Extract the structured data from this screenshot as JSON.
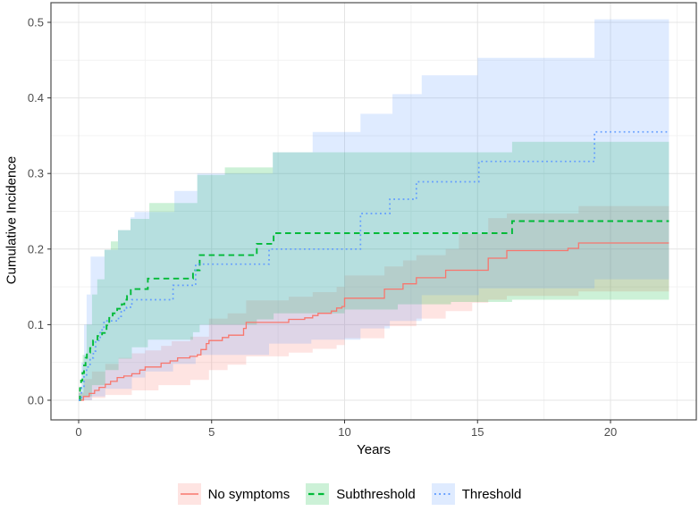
{
  "chart_data": {
    "type": "line",
    "subtype": "step-cumulative-incidence-with-ci-ribbons",
    "title": "",
    "xlabel": "Years",
    "ylabel": "Cumulative Incidence",
    "x_ticks": [
      0,
      5,
      10,
      15,
      20
    ],
    "x_tick_labels": [
      "0",
      "5",
      "10",
      "15",
      "20"
    ],
    "x_minor": [
      2.5,
      7.5,
      12.5,
      17.5,
      22.5
    ],
    "y_ticks": [
      0.0,
      0.1,
      0.2,
      0.3,
      0.4,
      0.5
    ],
    "y_tick_labels": [
      "0.0",
      "0.1",
      "0.2",
      "0.3",
      "0.4",
      "0.5"
    ],
    "y_minor": [
      0.05,
      0.15,
      0.25,
      0.35,
      0.45
    ],
    "xlim": [
      -1.04,
      23.3
    ],
    "ylim": [
      -0.026,
      0.527
    ],
    "grid": "major+minor",
    "legend_position": "bottom",
    "colors": {
      "no_symptoms": "#F8766D",
      "subthreshold": "#00BA38",
      "threshold": "#619CFF",
      "grid_major": "#E4E4E4",
      "grid_minor": "#F1F1F1",
      "panel_border": "#4D4D4D",
      "tick_text": "#4D4D4D"
    },
    "series": [
      {
        "name": "No symptoms",
        "color": "#F8766D",
        "linestyle": "solid",
        "linewidth": 1.3,
        "steps": [
          [
            0,
            0
          ],
          [
            0.18,
            0.005
          ],
          [
            0.4,
            0.009
          ],
          [
            0.6,
            0.013
          ],
          [
            0.77,
            0.017
          ],
          [
            1.0,
            0.021
          ],
          [
            1.2,
            0.025
          ],
          [
            1.45,
            0.03
          ],
          [
            1.7,
            0.032
          ],
          [
            2.0,
            0.035
          ],
          [
            2.3,
            0.04
          ],
          [
            2.5,
            0.044
          ],
          [
            3.1,
            0.049
          ],
          [
            3.44,
            0.052
          ],
          [
            3.72,
            0.056
          ],
          [
            4.18,
            0.058
          ],
          [
            4.46,
            0.06
          ],
          [
            4.6,
            0.067
          ],
          [
            4.8,
            0.075
          ],
          [
            4.9,
            0.079
          ],
          [
            5.4,
            0.083
          ],
          [
            5.64,
            0.086
          ],
          [
            6.2,
            0.095
          ],
          [
            6.3,
            0.103
          ],
          [
            7.9,
            0.107
          ],
          [
            8.5,
            0.109
          ],
          [
            8.8,
            0.112
          ],
          [
            9.0,
            0.115
          ],
          [
            9.5,
            0.118
          ],
          [
            9.7,
            0.122
          ],
          [
            9.9,
            0.124
          ],
          [
            10.0,
            0.135
          ],
          [
            11.5,
            0.147
          ],
          [
            12.2,
            0.154
          ],
          [
            12.7,
            0.162
          ],
          [
            13.8,
            0.172
          ],
          [
            15.4,
            0.188
          ],
          [
            16.1,
            0.198
          ],
          [
            18.4,
            0.201
          ],
          [
            18.8,
            0.208
          ],
          [
            22.2,
            0.208
          ]
        ],
        "ci_upper": [
          [
            0,
            0.01
          ],
          [
            0.2,
            0.028
          ],
          [
            0.5,
            0.038
          ],
          [
            1,
            0.048
          ],
          [
            1.5,
            0.056
          ],
          [
            2,
            0.062
          ],
          [
            2.5,
            0.066
          ],
          [
            3.1,
            0.072
          ],
          [
            3.5,
            0.078
          ],
          [
            4.2,
            0.084
          ],
          [
            4.9,
            0.108
          ],
          [
            5.6,
            0.115
          ],
          [
            6.3,
            0.132
          ],
          [
            7.9,
            0.137
          ],
          [
            8.8,
            0.143
          ],
          [
            9.7,
            0.15
          ],
          [
            10,
            0.165
          ],
          [
            11.5,
            0.177
          ],
          [
            12.2,
            0.185
          ],
          [
            12.7,
            0.192
          ],
          [
            13.8,
            0.2
          ],
          [
            14.3,
            0.22
          ],
          [
            15.4,
            0.241
          ],
          [
            16.1,
            0.247
          ],
          [
            18.8,
            0.257
          ],
          [
            22.2,
            0.257
          ]
        ],
        "ci_lower": [
          [
            0,
            0
          ],
          [
            0.5,
            0.003
          ],
          [
            1,
            0.007
          ],
          [
            2,
            0.013
          ],
          [
            3,
            0.02
          ],
          [
            4.2,
            0.027
          ],
          [
            4.9,
            0.04
          ],
          [
            5.6,
            0.047
          ],
          [
            6.3,
            0.058
          ],
          [
            7.9,
            0.063
          ],
          [
            8.8,
            0.068
          ],
          [
            9.7,
            0.073
          ],
          [
            10,
            0.082
          ],
          [
            11.5,
            0.098
          ],
          [
            12.7,
            0.108
          ],
          [
            13.8,
            0.118
          ],
          [
            14.8,
            0.129
          ],
          [
            15.4,
            0.133
          ],
          [
            16.1,
            0.138
          ],
          [
            18.8,
            0.144
          ],
          [
            22.2,
            0.144
          ]
        ]
      },
      {
        "name": "Subthreshold",
        "color": "#00BA38",
        "linestyle": "dashed",
        "linewidth": 1.9,
        "steps": [
          [
            0,
            0
          ],
          [
            0.05,
            0.016
          ],
          [
            0.09,
            0.026
          ],
          [
            0.14,
            0.036
          ],
          [
            0.2,
            0.046
          ],
          [
            0.26,
            0.056
          ],
          [
            0.31,
            0.063
          ],
          [
            0.43,
            0.069
          ],
          [
            0.54,
            0.079
          ],
          [
            0.71,
            0.085
          ],
          [
            0.88,
            0.089
          ],
          [
            1.05,
            0.099
          ],
          [
            1.15,
            0.109
          ],
          [
            1.28,
            0.115
          ],
          [
            1.45,
            0.121
          ],
          [
            1.62,
            0.127
          ],
          [
            1.72,
            0.133
          ],
          [
            1.82,
            0.138
          ],
          [
            1.96,
            0.147
          ],
          [
            2.6,
            0.161
          ],
          [
            4.3,
            0.172
          ],
          [
            4.55,
            0.192
          ],
          [
            6.7,
            0.207
          ],
          [
            7.33,
            0.221
          ],
          [
            16.3,
            0.237
          ],
          [
            22.2,
            0.237
          ]
        ],
        "ci_upper": [
          [
            0,
            0.01
          ],
          [
            0.15,
            0.06
          ],
          [
            0.3,
            0.1
          ],
          [
            0.5,
            0.14
          ],
          [
            0.7,
            0.16
          ],
          [
            0.97,
            0.199
          ],
          [
            1.21,
            0.21
          ],
          [
            1.48,
            0.225
          ],
          [
            1.95,
            0.24
          ],
          [
            2.66,
            0.261
          ],
          [
            4.46,
            0.298
          ],
          [
            5.5,
            0.308
          ],
          [
            7.3,
            0.328
          ],
          [
            16.3,
            0.342
          ],
          [
            22.2,
            0.342
          ]
        ],
        "ci_lower": [
          [
            0,
            0
          ],
          [
            0.2,
            0.005
          ],
          [
            0.5,
            0.02
          ],
          [
            1,
            0.04
          ],
          [
            1.5,
            0.055
          ],
          [
            2,
            0.07
          ],
          [
            2.6,
            0.08
          ],
          [
            4.3,
            0.09
          ],
          [
            4.55,
            0.1
          ],
          [
            6.7,
            0.107
          ],
          [
            7.33,
            0.115
          ],
          [
            10,
            0.12
          ],
          [
            12,
            0.127
          ],
          [
            14,
            0.13
          ],
          [
            16.3,
            0.133
          ],
          [
            22.2,
            0.133
          ]
        ]
      },
      {
        "name": "Threshold",
        "color": "#619CFF",
        "linestyle": "dotted",
        "linewidth": 1.7,
        "steps": [
          [
            0,
            0
          ],
          [
            0.1,
            0.016
          ],
          [
            0.2,
            0.032
          ],
          [
            0.3,
            0.044
          ],
          [
            0.43,
            0.056
          ],
          [
            0.55,
            0.065
          ],
          [
            0.64,
            0.079
          ],
          [
            0.81,
            0.093
          ],
          [
            0.95,
            0.105
          ],
          [
            1.5,
            0.111
          ],
          [
            1.6,
            0.117
          ],
          [
            1.72,
            0.121
          ],
          [
            1.8,
            0.123
          ],
          [
            2.0,
            0.133
          ],
          [
            3.55,
            0.152
          ],
          [
            4.4,
            0.18
          ],
          [
            7.16,
            0.2
          ],
          [
            10.6,
            0.247
          ],
          [
            11.7,
            0.266
          ],
          [
            12.7,
            0.289
          ],
          [
            15.05,
            0.316
          ],
          [
            19.4,
            0.355
          ],
          [
            22.2,
            0.355
          ]
        ],
        "ci_upper": [
          [
            0,
            0.01
          ],
          [
            0.1,
            0.05
          ],
          [
            0.2,
            0.1
          ],
          [
            0.3,
            0.14
          ],
          [
            0.45,
            0.19
          ],
          [
            0.97,
            0.199
          ],
          [
            1.48,
            0.225
          ],
          [
            1.95,
            0.242
          ],
          [
            2.1,
            0.249
          ],
          [
            3.6,
            0.277
          ],
          [
            4.46,
            0.3
          ],
          [
            7.3,
            0.328
          ],
          [
            8.8,
            0.355
          ],
          [
            10.6,
            0.379
          ],
          [
            11.8,
            0.405
          ],
          [
            12.9,
            0.43
          ],
          [
            15.0,
            0.453
          ],
          [
            19.4,
            0.504
          ],
          [
            22.2,
            0.504
          ]
        ],
        "ci_lower": [
          [
            0,
            0
          ],
          [
            0.5,
            0.005
          ],
          [
            1,
            0.015
          ],
          [
            2,
            0.03
          ],
          [
            2.5,
            0.038
          ],
          [
            3.55,
            0.048
          ],
          [
            4.4,
            0.06
          ],
          [
            7.16,
            0.075
          ],
          [
            8.75,
            0.08
          ],
          [
            10.6,
            0.095
          ],
          [
            11.7,
            0.105
          ],
          [
            12.9,
            0.139
          ],
          [
            15.05,
            0.148
          ],
          [
            19.4,
            0.16
          ],
          [
            22.2,
            0.16
          ]
        ]
      }
    ],
    "ribbon_opacity": 0.2,
    "legend": {
      "items": [
        {
          "label": "No symptoms"
        },
        {
          "label": "Subthreshold"
        },
        {
          "label": "Threshold"
        }
      ]
    }
  }
}
